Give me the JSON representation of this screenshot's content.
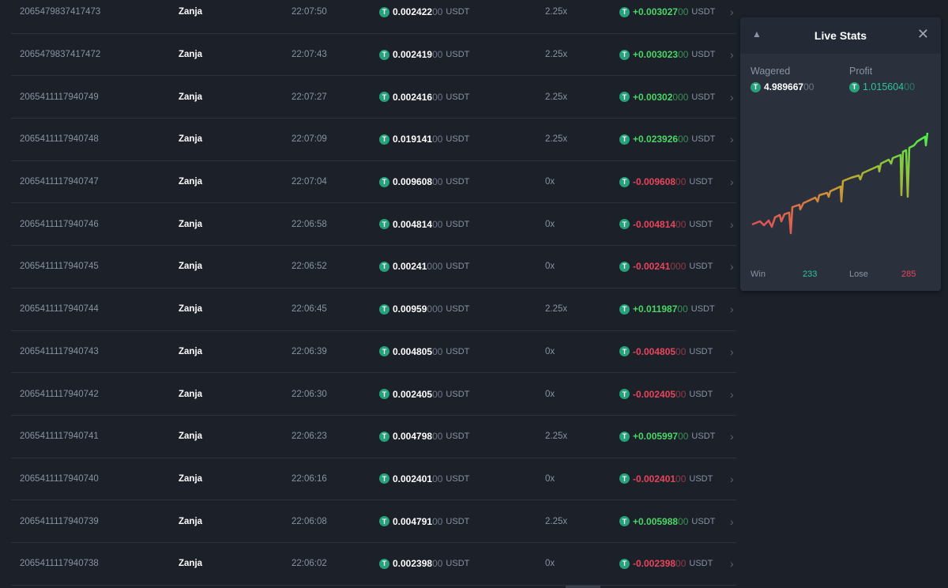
{
  "currency": "USDT",
  "rows": [
    {
      "id": "2065479837417473",
      "user": "Zanja",
      "time": "22:07:50",
      "bet": [
        "0.002422",
        "00"
      ],
      "mult": "2.25x",
      "profit": [
        "+0.003027",
        "00"
      ],
      "win": true
    },
    {
      "id": "2065479837417472",
      "user": "Zanja",
      "time": "22:07:43",
      "bet": [
        "0.002419",
        "00"
      ],
      "mult": "2.25x",
      "profit": [
        "+0.003023",
        "00"
      ],
      "win": true
    },
    {
      "id": "2065411117940749",
      "user": "Zanja",
      "time": "22:07:27",
      "bet": [
        "0.002416",
        "00"
      ],
      "mult": "2.25x",
      "profit": [
        "+0.00302",
        "000"
      ],
      "win": true
    },
    {
      "id": "2065411117940748",
      "user": "Zanja",
      "time": "22:07:09",
      "bet": [
        "0.019141",
        "00"
      ],
      "mult": "2.25x",
      "profit": [
        "+0.023926",
        "00"
      ],
      "win": true
    },
    {
      "id": "2065411117940747",
      "user": "Zanja",
      "time": "22:07:04",
      "bet": [
        "0.009608",
        "00"
      ],
      "mult": "0x",
      "profit": [
        "-0.009608",
        "00"
      ],
      "win": false
    },
    {
      "id": "2065411117940746",
      "user": "Zanja",
      "time": "22:06:58",
      "bet": [
        "0.004814",
        "00"
      ],
      "mult": "0x",
      "profit": [
        "-0.004814",
        "00"
      ],
      "win": false
    },
    {
      "id": "2065411117940745",
      "user": "Zanja",
      "time": "22:06:52",
      "bet": [
        "0.00241",
        "000"
      ],
      "mult": "0x",
      "profit": [
        "-0.00241",
        "000"
      ],
      "win": false
    },
    {
      "id": "2065411117940744",
      "user": "Zanja",
      "time": "22:06:45",
      "bet": [
        "0.00959",
        "000"
      ],
      "mult": "2.25x",
      "profit": [
        "+0.011987",
        "00"
      ],
      "win": true
    },
    {
      "id": "2065411117940743",
      "user": "Zanja",
      "time": "22:06:39",
      "bet": [
        "0.004805",
        "00"
      ],
      "mult": "0x",
      "profit": [
        "-0.004805",
        "00"
      ],
      "win": false
    },
    {
      "id": "2065411117940742",
      "user": "Zanja",
      "time": "22:06:30",
      "bet": [
        "0.002405",
        "00"
      ],
      "mult": "0x",
      "profit": [
        "-0.002405",
        "00"
      ],
      "win": false
    },
    {
      "id": "2065411117940741",
      "user": "Zanja",
      "time": "22:06:23",
      "bet": [
        "0.004798",
        "00"
      ],
      "mult": "2.25x",
      "profit": [
        "+0.005997",
        "00"
      ],
      "win": true
    },
    {
      "id": "2065411117940740",
      "user": "Zanja",
      "time": "22:06:16",
      "bet": [
        "0.002401",
        "00"
      ],
      "mult": "0x",
      "profit": [
        "-0.002401",
        "00"
      ],
      "win": false
    },
    {
      "id": "2065411117940739",
      "user": "Zanja",
      "time": "22:06:08",
      "bet": [
        "0.004791",
        "00"
      ],
      "mult": "2.25x",
      "profit": [
        "+0.005988",
        "00"
      ],
      "win": true
    },
    {
      "id": "2065411117940738",
      "user": "Zanja",
      "time": "22:06:02",
      "bet": [
        "0.002398",
        "00"
      ],
      "mult": "0x",
      "profit": [
        "-0.002398",
        "00"
      ],
      "win": false
    }
  ],
  "live_stats": {
    "title": "Live Stats",
    "close": "✕",
    "wagered_label": "Wagered",
    "wagered_main": "4.989667",
    "wagered_dim": "00",
    "profit_label": "Profit",
    "profit_main": "1.015604",
    "profit_dim": "00",
    "win_label": "Win",
    "win_count": "233",
    "lose_label": "Lose",
    "lose_count": "285",
    "colors": {
      "win": "#2fc49a",
      "lose": "#e8455c",
      "line_start": "#e8455c",
      "line_end": "#4cf04a"
    }
  },
  "icons": {
    "coin": "tether-icon",
    "row_arrow": "chevron-right-icon",
    "stats": "bell-icon",
    "close": "close-icon"
  }
}
